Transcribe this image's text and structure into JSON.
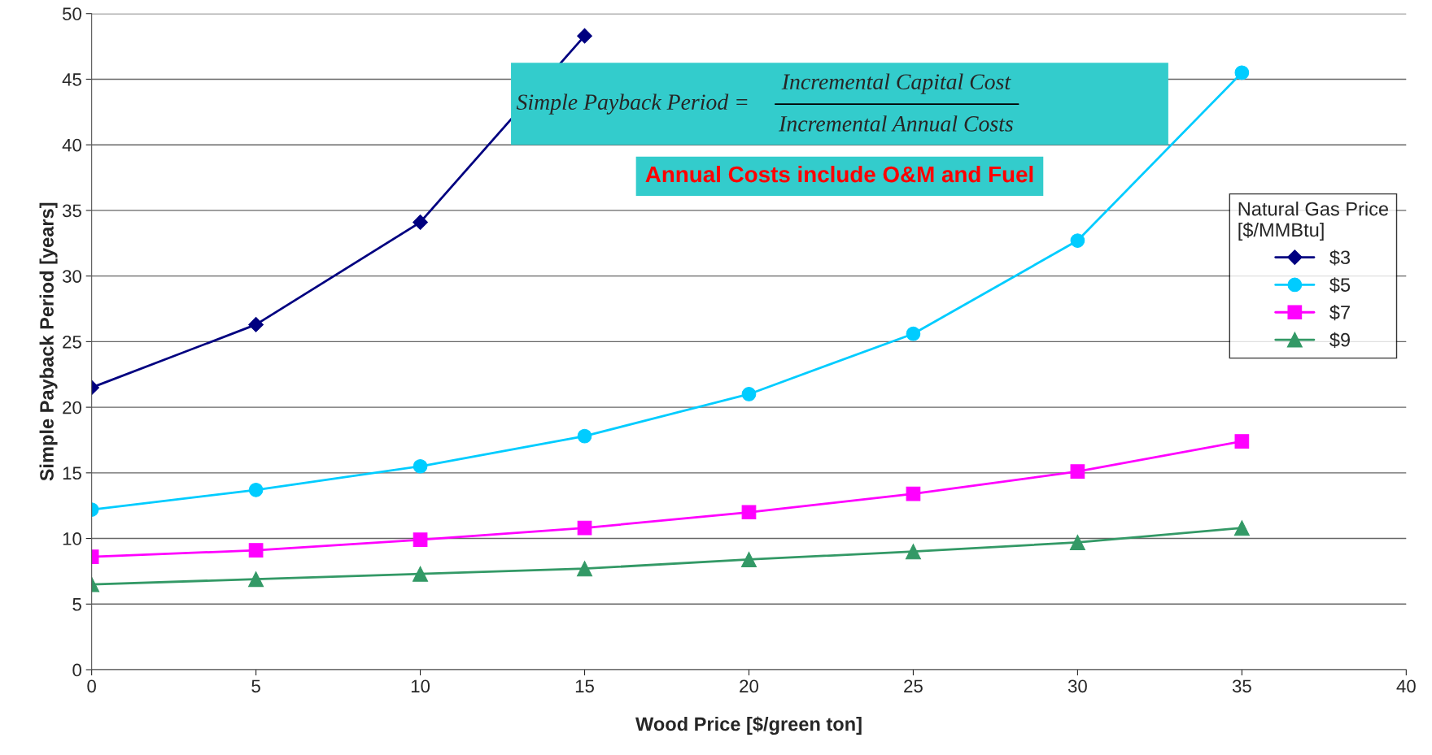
{
  "chart_data": {
    "type": "line",
    "xlabel": "Wood Price [$/green ton]",
    "ylabel": "Simple Payback Period [years]",
    "legend_title": "Natural Gas Price\n[$/MMBtu]",
    "legend": "right",
    "grid": "y",
    "xlim": [
      0,
      40
    ],
    "xticks": [
      0,
      5,
      10,
      15,
      20,
      25,
      30,
      35,
      40
    ],
    "ylim": [
      0,
      50
    ],
    "yticks": [
      0,
      5,
      10,
      15,
      20,
      25,
      30,
      35,
      40,
      45,
      50
    ],
    "x": [
      0,
      5,
      10,
      15,
      20,
      25,
      30,
      35
    ],
    "series": [
      {
        "name": "$3",
        "color": "#000080",
        "marker": "diamond",
        "x": [
          0,
          5,
          10,
          15
        ],
        "values": [
          21.5,
          26.3,
          34.1,
          48.3
        ]
      },
      {
        "name": "$5",
        "color": "#00ccff",
        "marker": "circle",
        "values": [
          12.2,
          13.7,
          15.5,
          17.8,
          21.0,
          25.6,
          32.7,
          45.5
        ]
      },
      {
        "name": "$7",
        "color": "#ff00ff",
        "marker": "square",
        "values": [
          8.6,
          9.1,
          9.9,
          10.8,
          12.0,
          13.4,
          15.1,
          17.4
        ]
      },
      {
        "name": "$9",
        "color": "#339966",
        "marker": "triangle",
        "values": [
          6.5,
          6.9,
          7.3,
          7.7,
          8.4,
          9.0,
          9.7,
          10.8
        ]
      }
    ],
    "annotations": [
      "Simple Payback Period =",
      "Incremental Capital Cost",
      "Incremental Annual Costs",
      "Annual Costs include O&M and Fuel"
    ]
  }
}
